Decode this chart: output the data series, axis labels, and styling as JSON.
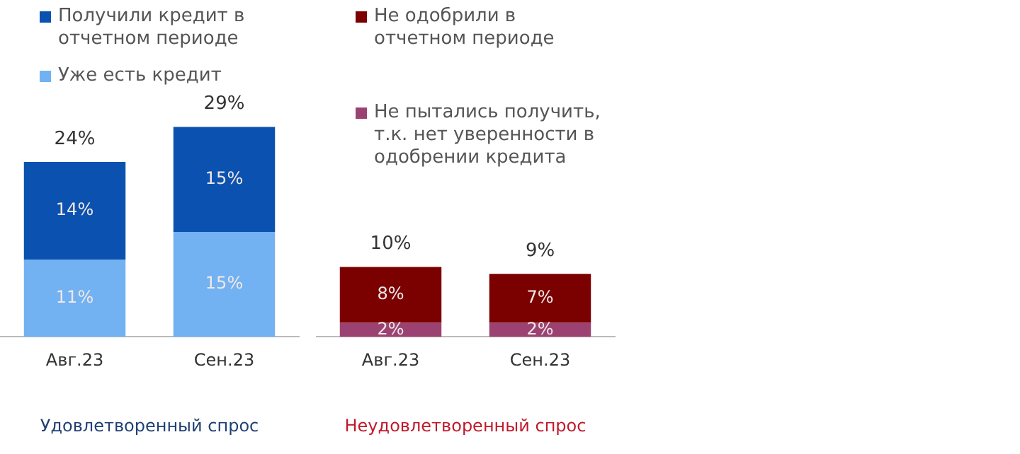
{
  "chart_data": [
    {
      "type": "bar",
      "stacked": true,
      "categories": [
        "Авг.23",
        "Сен.23"
      ],
      "xlabel": "Удовлетворенный спрос",
      "legend": "top",
      "tick_labels": "x",
      "series": [
        {
          "name": "Уже есть кредит",
          "color": "#72b2f2",
          "values": [
            11,
            15
          ],
          "value_labels": [
            "11%",
            "15%"
          ]
        },
        {
          "name": "Получили кредит в отчетном периоде",
          "color": "#0b52b0",
          "values": [
            14,
            15
          ],
          "value_labels": [
            "14%",
            "15%"
          ]
        }
      ],
      "totals": [
        "24%",
        "29%"
      ]
    },
    {
      "type": "bar",
      "stacked": true,
      "categories": [
        "Авг.23",
        "Сен.23"
      ],
      "xlabel": "Неудовлетворенный спрос",
      "legend": "top",
      "tick_labels": "x",
      "series": [
        {
          "name": "Не пытались получить, т.к. нет уверенности в одобрении кредита",
          "color": "#9c4272",
          "values": [
            2,
            2
          ],
          "value_labels": [
            "2%",
            "2%"
          ]
        },
        {
          "name": "Не одобрили в отчетном периоде",
          "color": "#7b0000",
          "values": [
            8,
            7
          ],
          "value_labels": [
            "8%",
            "7%"
          ]
        }
      ],
      "totals": [
        "10%",
        "9%"
      ]
    }
  ]
}
